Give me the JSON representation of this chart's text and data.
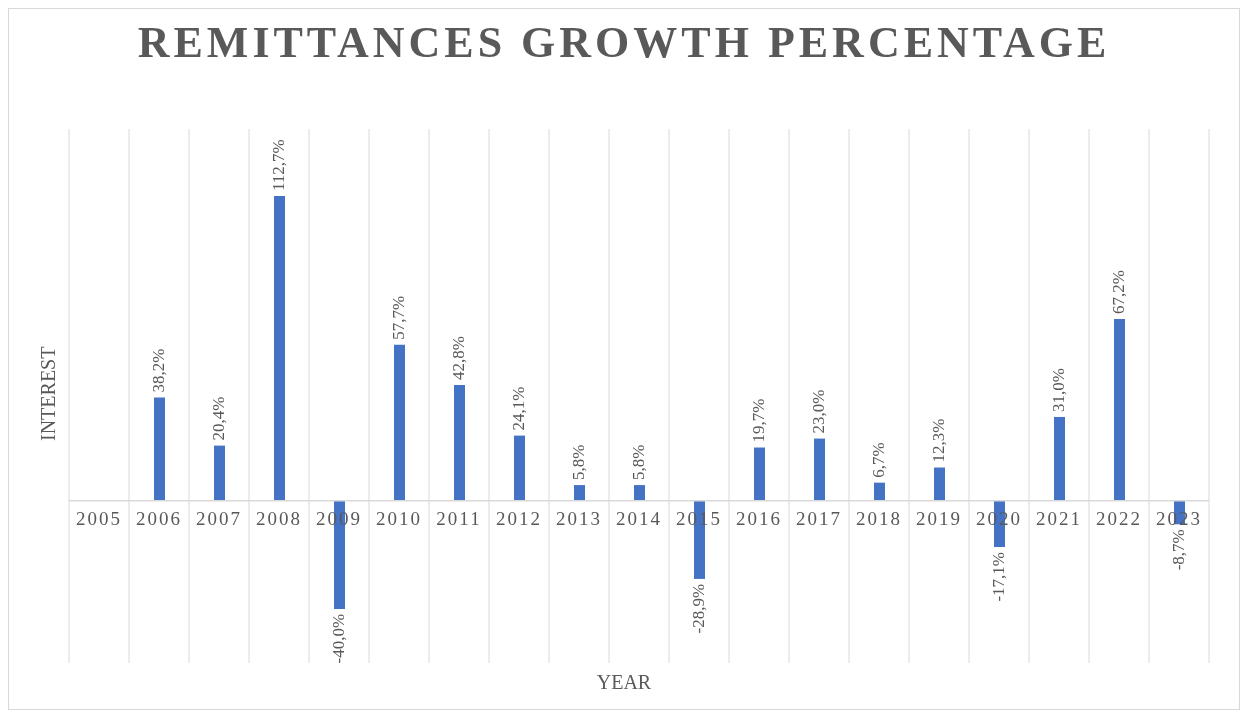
{
  "chart_data": {
    "type": "bar",
    "title": "REMITTANCES GROWTH PERCENTAGE",
    "xlabel": "YEAR",
    "ylabel": "INTEREST",
    "categories": [
      "2005",
      "2006",
      "2007",
      "2008",
      "2009",
      "2010",
      "2011",
      "2012",
      "2013",
      "2014",
      "2015",
      "2016",
      "2017",
      "2018",
      "2019",
      "2020",
      "2021",
      "2022",
      "2023"
    ],
    "values": [
      null,
      38.2,
      20.4,
      112.7,
      -40.0,
      57.7,
      42.8,
      24.1,
      5.8,
      5.8,
      -28.9,
      19.7,
      23.0,
      6.7,
      12.3,
      -17.1,
      31.0,
      67.2,
      -8.7
    ],
    "value_labels": [
      null,
      "38,2%",
      "20,4%",
      "112,7%",
      "-40,0%",
      "57,7%",
      "42,8%",
      "24,1%",
      "5,8%",
      "5,8%",
      "-28,9%",
      "19,7%",
      "23,0%",
      "6,7%",
      "12,3%",
      "-17,1%",
      "31,0%",
      "67,2%",
      "-8,7%"
    ],
    "color": "#4472c4",
    "grid": "x"
  }
}
